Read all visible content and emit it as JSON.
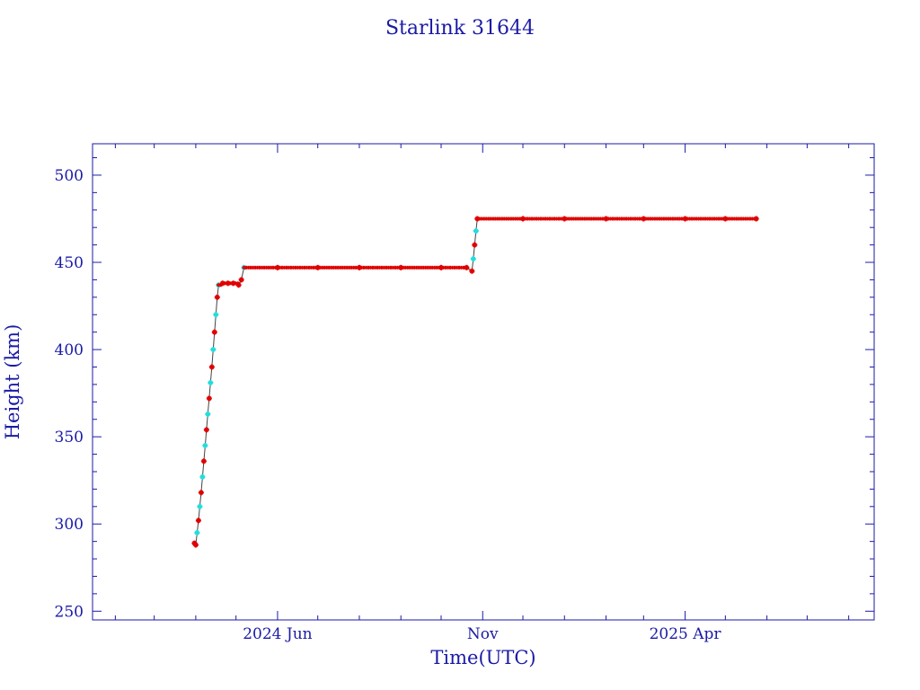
{
  "chart_data": {
    "type": "scatter",
    "title": "Starlink 31644",
    "xlabel": "Time(UTC)",
    "ylabel": "Height (km)",
    "x_ticks": [
      {
        "date": "2024-06-01",
        "label": "2024 Jun"
      },
      {
        "date": "2024-11-01",
        "label": "Nov"
      },
      {
        "date": "2025-04-01",
        "label": "2025 Apr"
      }
    ],
    "xlim": [
      "2024-01-15",
      "2025-08-20"
    ],
    "y_ticks": [
      250,
      300,
      350,
      400,
      450,
      500
    ],
    "ylim": [
      245,
      518
    ],
    "grid": false,
    "colors": {
      "axis": "#1a1aa6",
      "points": "#e00000",
      "highlight": "#22dddd",
      "line": "#444444"
    },
    "series": [
      {
        "points": [
          [
            "2024-03-31",
            289
          ],
          [
            "2024-04-01",
            288
          ],
          [
            "2024-04-02",
            295
          ],
          [
            "2024-04-03",
            302
          ],
          [
            "2024-04-04",
            310
          ],
          [
            "2024-04-05",
            318
          ],
          [
            "2024-04-06",
            327
          ],
          [
            "2024-04-07",
            336
          ],
          [
            "2024-04-08",
            345
          ],
          [
            "2024-04-09",
            354
          ],
          [
            "2024-04-10",
            363
          ],
          [
            "2024-04-11",
            372
          ],
          [
            "2024-04-12",
            381
          ],
          [
            "2024-04-13",
            390
          ],
          [
            "2024-04-14",
            400
          ],
          [
            "2024-04-15",
            410
          ],
          [
            "2024-04-16",
            420
          ],
          [
            "2024-04-17",
            430
          ],
          [
            "2024-04-18",
            437
          ],
          [
            "2024-04-21",
            438
          ],
          [
            "2024-04-25",
            438
          ],
          [
            "2024-04-29",
            438
          ],
          [
            "2024-05-03",
            437
          ],
          [
            "2024-05-05",
            440
          ],
          [
            "2024-05-07",
            447
          ],
          [
            "2024-06-01",
            447
          ],
          [
            "2024-07-01",
            447
          ],
          [
            "2024-08-01",
            447
          ],
          [
            "2024-09-01",
            447
          ],
          [
            "2024-10-01",
            447
          ],
          [
            "2024-10-20",
            447
          ],
          [
            "2024-10-24",
            445
          ],
          [
            "2024-10-25",
            452
          ],
          [
            "2024-10-26",
            460
          ],
          [
            "2024-10-27",
            468
          ],
          [
            "2024-10-28",
            475
          ],
          [
            "2024-12-01",
            475
          ],
          [
            "2025-01-01",
            475
          ],
          [
            "2025-02-01",
            475
          ],
          [
            "2025-03-01",
            475
          ],
          [
            "2025-04-01",
            475
          ],
          [
            "2025-05-01",
            475
          ],
          [
            "2025-05-24",
            475
          ]
        ]
      }
    ]
  }
}
